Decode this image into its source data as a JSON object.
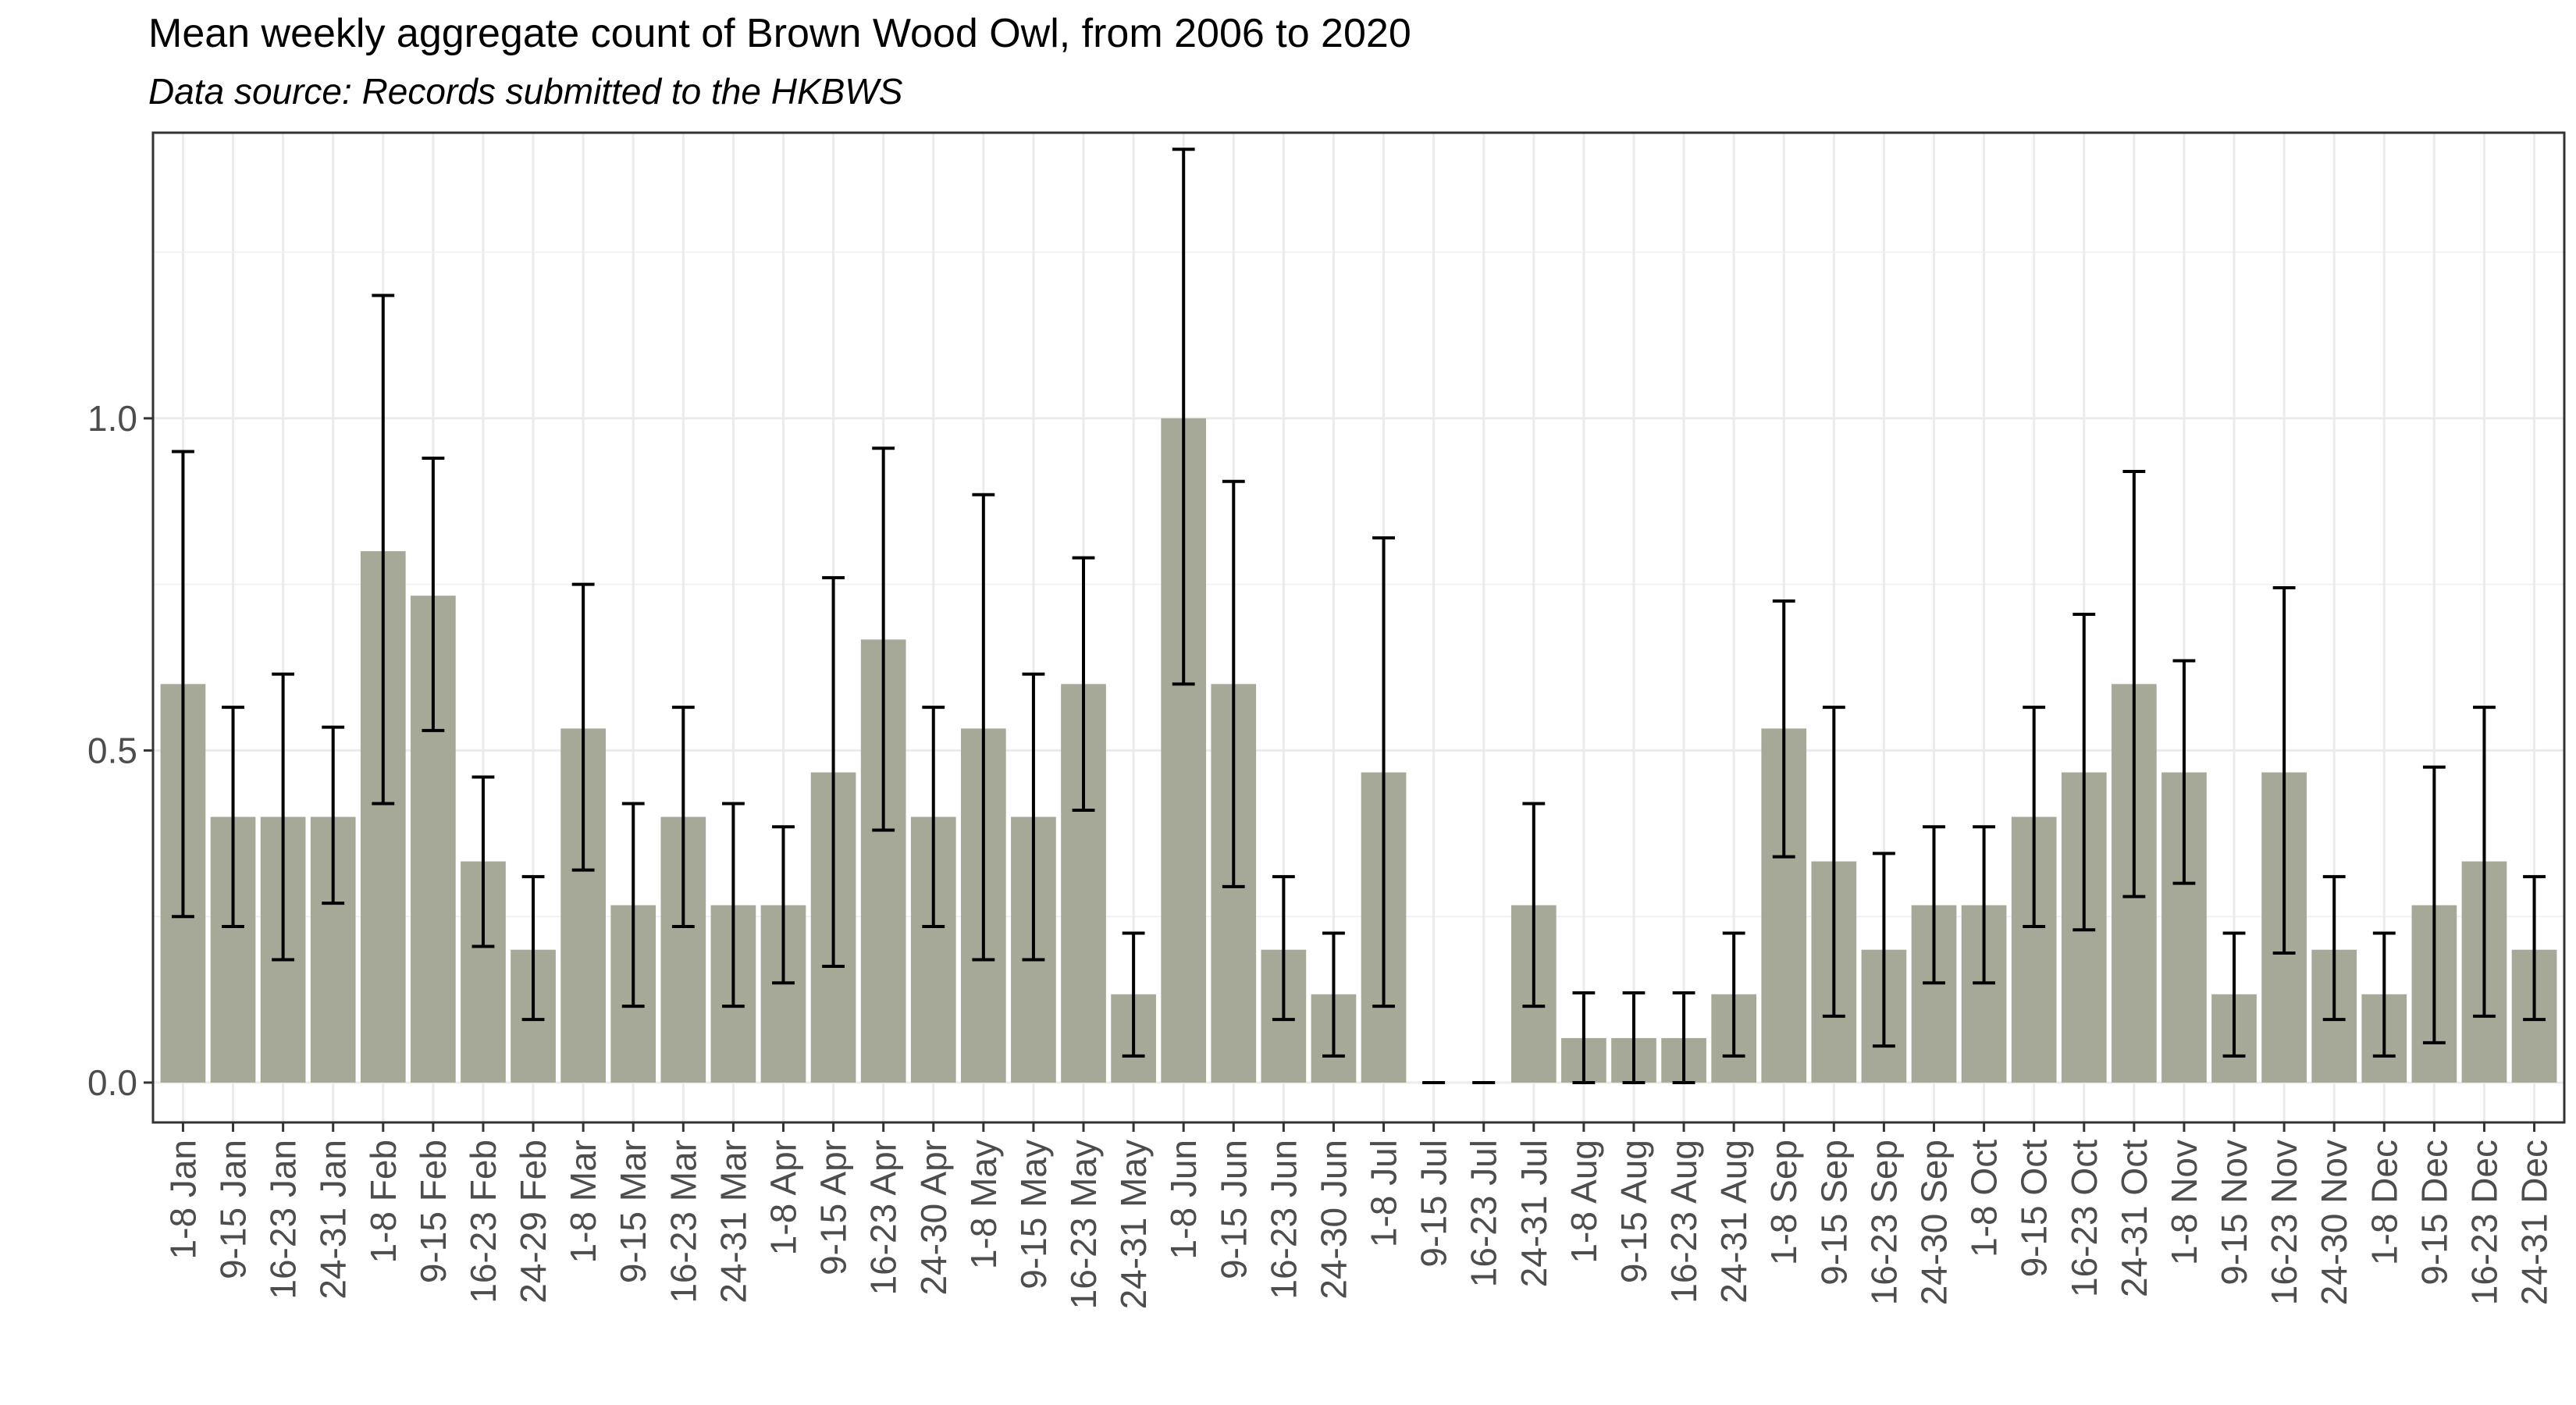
{
  "chart_data": {
    "type": "bar",
    "title": "Mean weekly aggregate count of Brown Wood Owl, from 2006 to 2020",
    "subtitle": "Data source: Records submitted to the HKBWS",
    "xlabel": "",
    "ylabel": "",
    "ylim": [
      -0.06,
      1.43
    ],
    "yticks": [
      0.0,
      0.5,
      1.0
    ],
    "ytick_labels": [
      "0.0",
      "0.5",
      "1.0"
    ],
    "grid": true,
    "bar_color": "#a6a898",
    "errorbar_color": "#000000",
    "categories": [
      "1-8 Jan",
      "9-15 Jan",
      "16-23 Jan",
      "24-31 Jan",
      "1-8 Feb",
      "9-15 Feb",
      "16-23 Feb",
      "24-29 Feb",
      "1-8 Mar",
      "9-15 Mar",
      "16-23 Mar",
      "24-31 Mar",
      "1-8 Apr",
      "9-15 Apr",
      "16-23 Apr",
      "24-30 Apr",
      "1-8 May",
      "9-15 May",
      "16-23 May",
      "24-31 May",
      "1-8 Jun",
      "9-15 Jun",
      "16-23 Jun",
      "24-30 Jun",
      "1-8 Jul",
      "9-15 Jul",
      "16-23 Jul",
      "24-31 Jul",
      "1-8 Aug",
      "9-15 Aug",
      "16-23 Aug",
      "24-31 Aug",
      "1-8 Sep",
      "9-15 Sep",
      "16-23 Sep",
      "24-30 Sep",
      "1-8 Oct",
      "9-15 Oct",
      "16-23 Oct",
      "24-31 Oct",
      "1-8 Nov",
      "9-15 Nov",
      "16-23 Nov",
      "24-30 Nov",
      "1-8 Dec",
      "9-15 Dec",
      "16-23 Dec",
      "24-31 Dec"
    ],
    "values": [
      0.6,
      0.4,
      0.4,
      0.4,
      0.8,
      0.733,
      0.333,
      0.2,
      0.533,
      0.267,
      0.4,
      0.267,
      0.267,
      0.467,
      0.667,
      0.4,
      0.533,
      0.4,
      0.6,
      0.133,
      1.0,
      0.6,
      0.2,
      0.133,
      0.467,
      0.0,
      0.0,
      0.267,
      0.067,
      0.067,
      0.067,
      0.133,
      0.533,
      0.333,
      0.2,
      0.267,
      0.267,
      0.4,
      0.467,
      0.6,
      0.467,
      0.133,
      0.467,
      0.2,
      0.133,
      0.267,
      0.333,
      0.2
    ],
    "err_low": [
      0.25,
      0.235,
      0.185,
      0.27,
      0.42,
      0.53,
      0.205,
      0.095,
      0.32,
      0.115,
      0.235,
      0.115,
      0.15,
      0.175,
      0.38,
      0.235,
      0.185,
      0.185,
      0.41,
      0.04,
      0.6,
      0.295,
      0.095,
      0.04,
      0.115,
      0.0,
      0.0,
      0.115,
      0.0,
      0.0,
      0.0,
      0.04,
      0.34,
      0.1,
      0.055,
      0.15,
      0.15,
      0.235,
      0.23,
      0.28,
      0.3,
      0.04,
      0.195,
      0.095,
      0.04,
      0.06,
      0.1,
      0.095
    ],
    "err_high": [
      0.95,
      0.565,
      0.615,
      0.535,
      1.185,
      0.94,
      0.46,
      0.31,
      0.75,
      0.42,
      0.565,
      0.42,
      0.385,
      0.76,
      0.955,
      0.565,
      0.885,
      0.615,
      0.79,
      0.225,
      1.405,
      0.905,
      0.31,
      0.225,
      0.82,
      0.0,
      0.0,
      0.42,
      0.135,
      0.135,
      0.135,
      0.225,
      0.725,
      0.565,
      0.345,
      0.385,
      0.385,
      0.565,
      0.705,
      0.92,
      0.635,
      0.225,
      0.745,
      0.31,
      0.225,
      0.475,
      0.565,
      0.31
    ]
  }
}
